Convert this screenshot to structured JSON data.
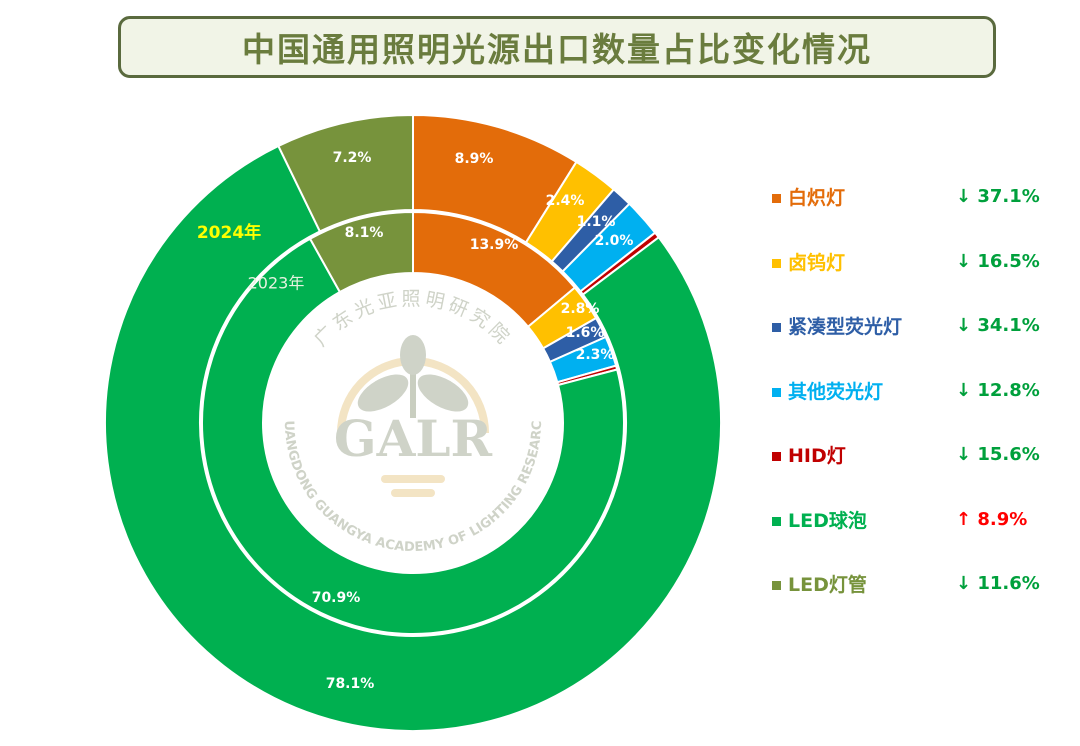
{
  "title": "中国通用照明光源出口数量占比变化情况",
  "chart_data": {
    "type": "donut",
    "categories": [
      "白炽灯",
      "卤钨灯",
      "紧凑型荧光灯",
      "其他荧光灯",
      "HID灯",
      "LED球泡",
      "LED灯管"
    ],
    "colors": [
      "#e36c0a",
      "#ffc000",
      "#2e5ea6",
      "#00b0f0",
      "#c00000",
      "#00b050",
      "#77933c"
    ],
    "series": [
      {
        "name": "2024年",
        "ring": "outer",
        "values": [
          8.9,
          2.4,
          1.1,
          2.0,
          0.3,
          78.1,
          7.2
        ],
        "labels": [
          "8.9%",
          "2.4%",
          "1.1%",
          "2.0%",
          "",
          "78.1%",
          "7.2%"
        ]
      },
      {
        "name": "2023年",
        "ring": "inner",
        "values": [
          13.9,
          2.8,
          1.6,
          2.3,
          0.3,
          70.9,
          8.1
        ],
        "labels": [
          "13.9%",
          "2.8%",
          "1.6%",
          "2.3%",
          "",
          "70.9%",
          "8.1%"
        ]
      }
    ],
    "changes": [
      {
        "text": "↓ 37.1%",
        "dir": "down"
      },
      {
        "text": "↓ 16.5%",
        "dir": "down"
      },
      {
        "text": "↓ 34.1%",
        "dir": "down"
      },
      {
        "text": "↓ 12.8%",
        "dir": "down"
      },
      {
        "text": "↓ 15.6%",
        "dir": "down"
      },
      {
        "text": "↑ 8.9%",
        "dir": "up"
      },
      {
        "text": "↓ 11.6%",
        "dir": "down"
      }
    ],
    "change_colors": {
      "down": "#00a03c",
      "up": "#ff0000"
    }
  },
  "watermark": {
    "cn": "广东光亚照明研究院",
    "en": "GUANGDONG GUANGYA ACADEMY OF LIGHTING RESEARCH",
    "logo": "GALR"
  }
}
